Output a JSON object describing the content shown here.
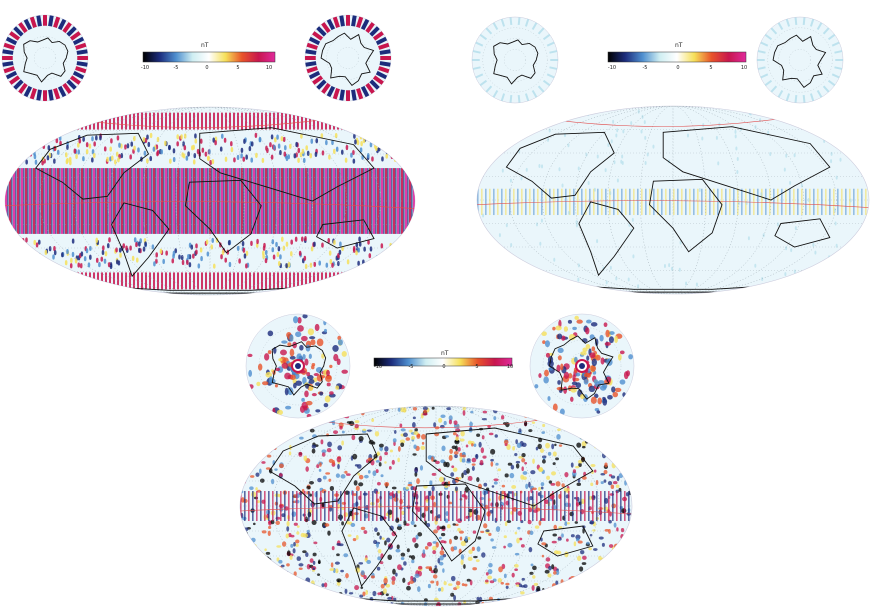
{
  "figure": {
    "panels": [
      {
        "id": "panel-1",
        "colorbar": {
          "unit_label": "nT",
          "tick_labels": [
            "-10",
            "-5",
            "0",
            "5",
            "10"
          ],
          "min": -10,
          "max": 10,
          "colors": [
            "#000000",
            "#1c2c7c",
            "#4f8fcf",
            "#cfeef2",
            "#ffffff",
            "#f6e05a",
            "#e8542a",
            "#c8164e",
            "#e02a9c"
          ]
        },
        "pattern": "strong",
        "description_level": 1.0
      },
      {
        "id": "panel-2",
        "colorbar": {
          "unit_label": "nT",
          "tick_labels": [
            "-10",
            "-5",
            "0",
            "5",
            "10"
          ],
          "min": -10,
          "max": 10,
          "colors": [
            "#000000",
            "#1c2c7c",
            "#4f8fcf",
            "#cfeef2",
            "#ffffff",
            "#f6e05a",
            "#e8542a",
            "#c8164e",
            "#e02a9c"
          ]
        },
        "pattern": "weak",
        "description_level": 0.15
      },
      {
        "id": "panel-3",
        "colorbar": {
          "unit_label": "nT",
          "tick_labels": [
            "-10",
            "-5",
            "0",
            "5",
            "10"
          ],
          "min": -10,
          "max": 10,
          "colors": [
            "#000000",
            "#1c2c7c",
            "#4f8fcf",
            "#cfeef2",
            "#ffffff",
            "#f6e05a",
            "#e8542a",
            "#c8164e",
            "#e02a9c"
          ]
        },
        "pattern": "noisy",
        "description_level": 0.6
      }
    ],
    "map_style": {
      "ocean_color": "#eaf6fb",
      "coastline_color": "#111111",
      "graticule_color": "#9aa8b0",
      "contour_color": "#e05050"
    }
  }
}
